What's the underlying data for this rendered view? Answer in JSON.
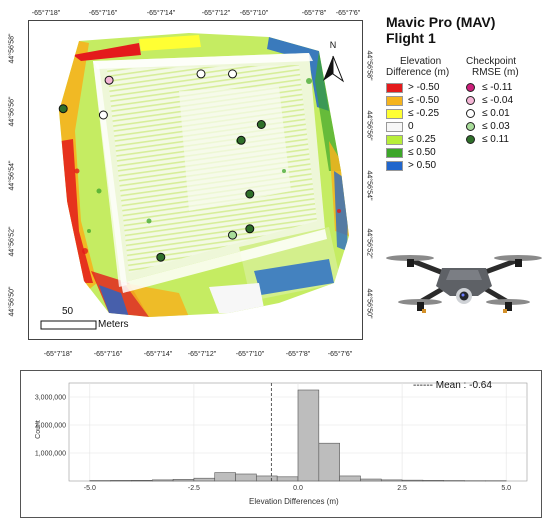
{
  "title": {
    "line1": "Mavic Pro (MAV)",
    "line2": "Flight 1"
  },
  "map": {
    "top_ticks": [
      "-65°7'18\"",
      "-65°7'16\"",
      "-65°7'14\"",
      "-65°7'12\"",
      "-65°7'10\"",
      "-65°7'8\"",
      "-65°7'6\""
    ],
    "bottom_ticks": [
      "-65°7'18\"",
      "-65°7'16\"",
      "-65°7'14\"",
      "-65°7'12\"",
      "-65°7'10\"",
      "-65°7'8\"",
      "-65°7'6\""
    ],
    "left_ticks": [
      "44°56'58\"",
      "44°56'56\"",
      "44°56'54\"",
      "44°56'52\"",
      "44°56'50\""
    ],
    "right_ticks": [
      "44°56'58\"",
      "44°56'56\"",
      "44°56'54\"",
      "44°56'52\"",
      "44°56'50\""
    ],
    "north_label": "N",
    "scale_value": "50",
    "scale_unit": "Meters"
  },
  "legend": {
    "elevation_title": [
      "Elevation",
      "Difference (m)"
    ],
    "elevation_classes": [
      {
        "label": "> -0.50",
        "color": "#e41a1c"
      },
      {
        "label": "≤ -0.50",
        "color": "#f5b41e"
      },
      {
        "label": "≤ -0.25",
        "color": "#ffff33"
      },
      {
        "label": "0",
        "color": "#f7f7f7"
      },
      {
        "label": "≤ 0.25",
        "color": "#b8ee3a"
      },
      {
        "label": "≤ 0.50",
        "color": "#3da62a"
      },
      {
        "label": "> 0.50",
        "color": "#2166cc"
      }
    ],
    "checkpoint_title": [
      "Checkpoint",
      "RMSE (m)"
    ],
    "checkpoint_classes": [
      {
        "label": "≤ -0.11",
        "color": "#cc1f7a"
      },
      {
        "label": "≤ -0.04",
        "color": "#f4b6d6"
      },
      {
        "label": "≤ 0.01",
        "color": "#ffffff"
      },
      {
        "label": "≤ 0.03",
        "color": "#a8dc9a"
      },
      {
        "label": "≤ 0.11",
        "color": "#2f6f2a"
      }
    ]
  },
  "checkpoints": [
    {
      "lon_sec": 15.8,
      "lat_sec": 56.6,
      "class": 1
    },
    {
      "lon_sec": 12.6,
      "lat_sec": 56.8,
      "class": 2
    },
    {
      "lon_sec": 11.5,
      "lat_sec": 56.8,
      "class": 2
    },
    {
      "lon_sec": 16.0,
      "lat_sec": 55.5,
      "class": 2
    },
    {
      "lon_sec": 17.4,
      "lat_sec": 55.7,
      "class": 4
    },
    {
      "lon_sec": 10.5,
      "lat_sec": 55.2,
      "class": 4
    },
    {
      "lon_sec": 11.2,
      "lat_sec": 54.7,
      "class": 4
    },
    {
      "lon_sec": 10.9,
      "lat_sec": 53.0,
      "class": 4
    },
    {
      "lon_sec": 10.9,
      "lat_sec": 51.9,
      "class": 4
    },
    {
      "lon_sec": 11.5,
      "lat_sec": 51.7,
      "class": 3
    },
    {
      "lon_sec": 14.0,
      "lat_sec": 51.0,
      "class": 4
    }
  ],
  "chart_data": {
    "type": "bar",
    "xlabel": "Elevation Differences (m)",
    "ylabel": "Count",
    "xlim": [
      -5.5,
      5.5
    ],
    "ylim": [
      0,
      3500000
    ],
    "x_ticks": [
      -5.0,
      -2.5,
      0.0,
      2.5,
      5.0
    ],
    "y_ticks": [
      1000000,
      2000000,
      3000000
    ],
    "y_tick_labels": [
      "1,000,000",
      "2,000,000",
      "3,000,000"
    ],
    "x_tick_labels": [
      "-5.0",
      "-2.5",
      "0.0",
      "2.5",
      "5.0"
    ],
    "bin_width": 0.5,
    "bin_starts": [
      -5.0,
      -4.5,
      -4.0,
      -3.5,
      -3.0,
      -2.5,
      -2.0,
      -1.5,
      -1.0,
      -0.5,
      0.0,
      0.5,
      1.0,
      1.5,
      2.0,
      2.5,
      3.0,
      3.5,
      4.0,
      4.5
    ],
    "values": [
      15000,
      20000,
      25000,
      40000,
      60000,
      100000,
      300000,
      250000,
      180000,
      150000,
      3250000,
      1350000,
      180000,
      70000,
      40000,
      30000,
      20000,
      15000,
      10000,
      10000
    ],
    "mean_line_x": -0.64,
    "mean_label": "------ Mean : -0.64"
  }
}
